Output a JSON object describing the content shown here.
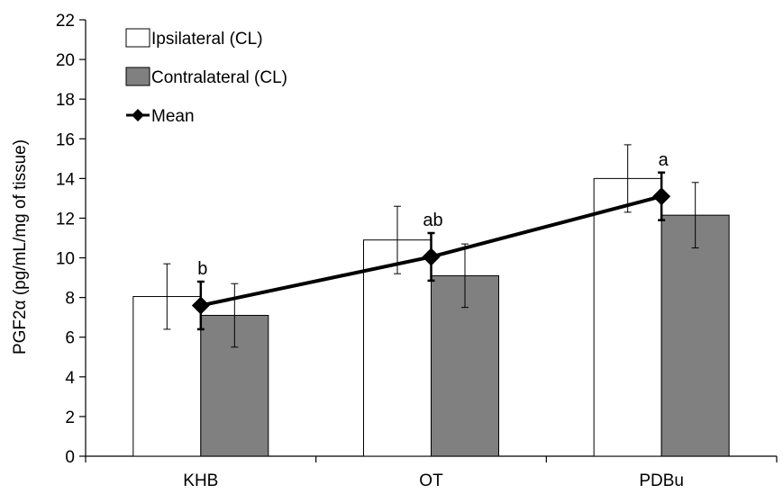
{
  "chart_data": {
    "type": "bar",
    "categories": [
      "KHB",
      "OT",
      "PDBu"
    ],
    "ylabel": "PGF2α  (pg/mL/mg of tissue)",
    "xlabel": "",
    "ylim": [
      0,
      22
    ],
    "yticks": [
      0,
      2,
      4,
      6,
      8,
      10,
      12,
      14,
      16,
      18,
      20,
      22
    ],
    "grid": false,
    "legend_position": "top-left",
    "series": [
      {
        "name": "Ipsilateral (CL)",
        "kind": "bar",
        "color": "#ffffff",
        "values": [
          8.05,
          10.9,
          14.0
        ],
        "error": [
          1.65,
          1.7,
          1.7
        ]
      },
      {
        "name": "Contralateral (CL)",
        "kind": "bar",
        "color": "#808080",
        "values": [
          7.1,
          9.1,
          12.15
        ],
        "error": [
          1.6,
          1.6,
          1.65
        ]
      },
      {
        "name": "Mean",
        "kind": "line",
        "color": "#000000",
        "values": [
          7.6,
          10.05,
          13.1
        ],
        "error": [
          1.2,
          1.2,
          1.2
        ]
      }
    ],
    "annotations": [
      "b",
      "ab",
      "a"
    ]
  }
}
